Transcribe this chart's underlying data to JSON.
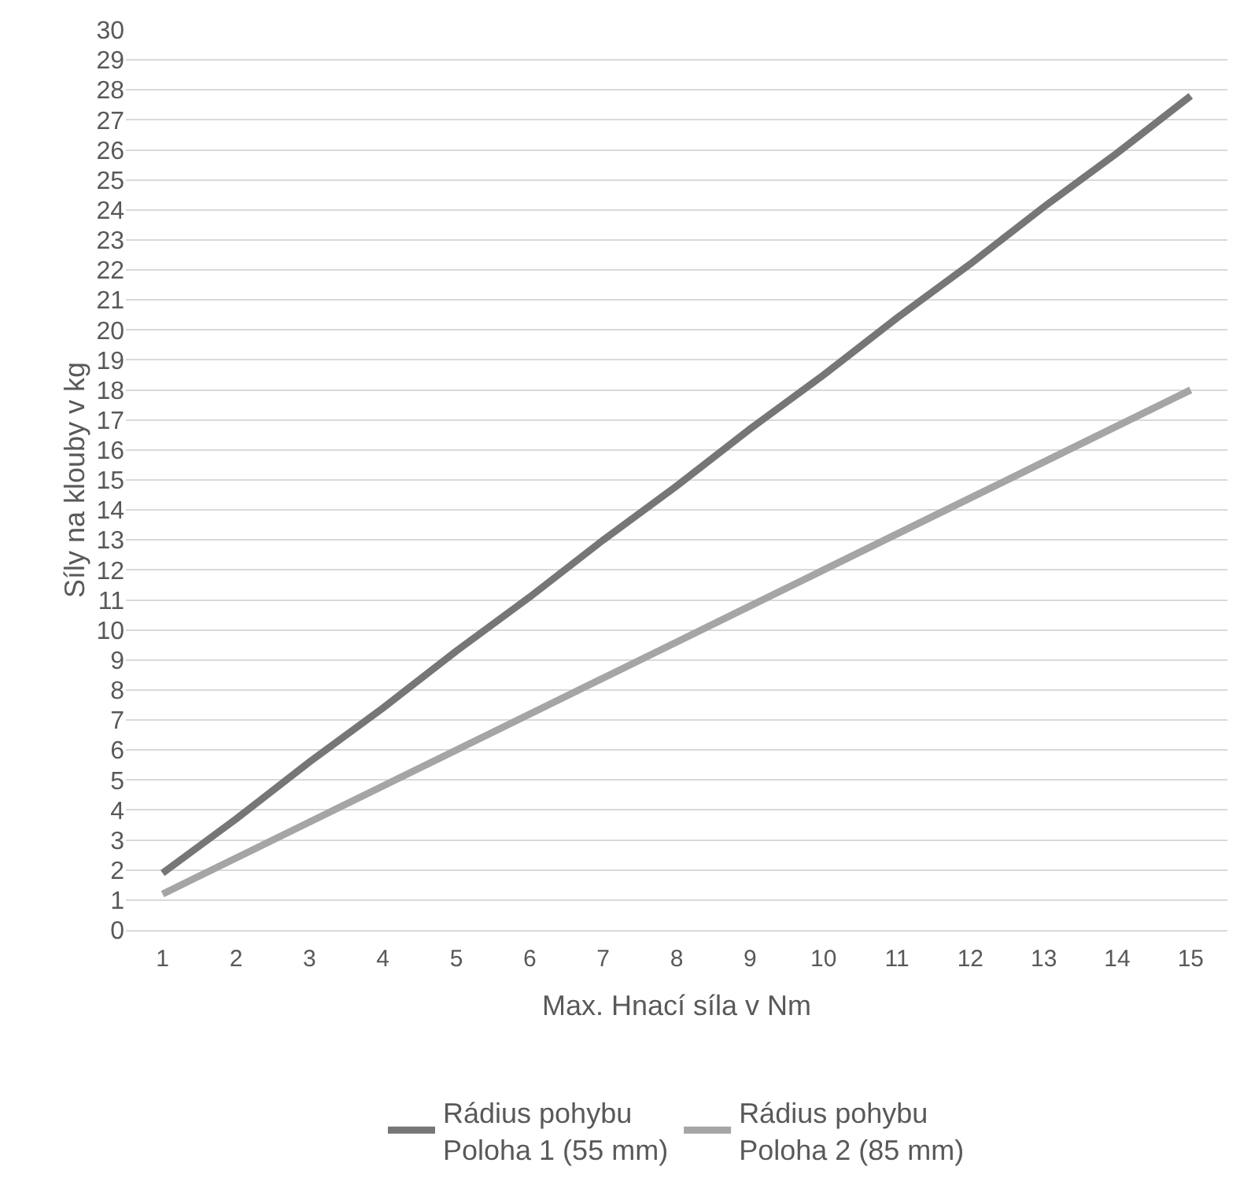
{
  "chart_data": {
    "type": "line",
    "xlabel": "Max. Hnací síla v Nm",
    "ylabel": "Síly na klouby v kg",
    "x": [
      1,
      2,
      3,
      4,
      5,
      6,
      7,
      8,
      9,
      10,
      11,
      12,
      13,
      14,
      15
    ],
    "xlim": [
      0.5,
      15.5
    ],
    "xticks": [
      1,
      2,
      3,
      4,
      5,
      6,
      7,
      8,
      9,
      10,
      11,
      12,
      13,
      14,
      15
    ],
    "series": [
      {
        "name": "Rádius pohybu\nPoloha 1 (55 mm)",
        "color": "#767676",
        "values": [
          1.9,
          3.7,
          5.6,
          7.4,
          9.3,
          11.1,
          13.0,
          14.8,
          16.7,
          18.5,
          20.4,
          22.2,
          24.1,
          25.9,
          27.8
        ]
      },
      {
        "name": "Rádius pohybu\nPoloha 2 (85 mm)",
        "color": "#a5a5a5",
        "values": [
          1.2,
          2.4,
          3.6,
          4.8,
          6.0,
          7.2,
          8.4,
          9.6,
          10.8,
          12.0,
          13.2,
          14.4,
          15.6,
          16.8,
          18.0
        ]
      }
    ],
    "ylim": [
      0,
      30
    ],
    "yticks": [
      0,
      1,
      2,
      3,
      4,
      5,
      6,
      7,
      8,
      9,
      10,
      11,
      12,
      13,
      14,
      15,
      16,
      17,
      18,
      19,
      20,
      21,
      22,
      23,
      24,
      25,
      26,
      27,
      28,
      29,
      30
    ],
    "grid": "y",
    "legend": "bottom",
    "marker": "none",
    "line_style": "solid"
  }
}
